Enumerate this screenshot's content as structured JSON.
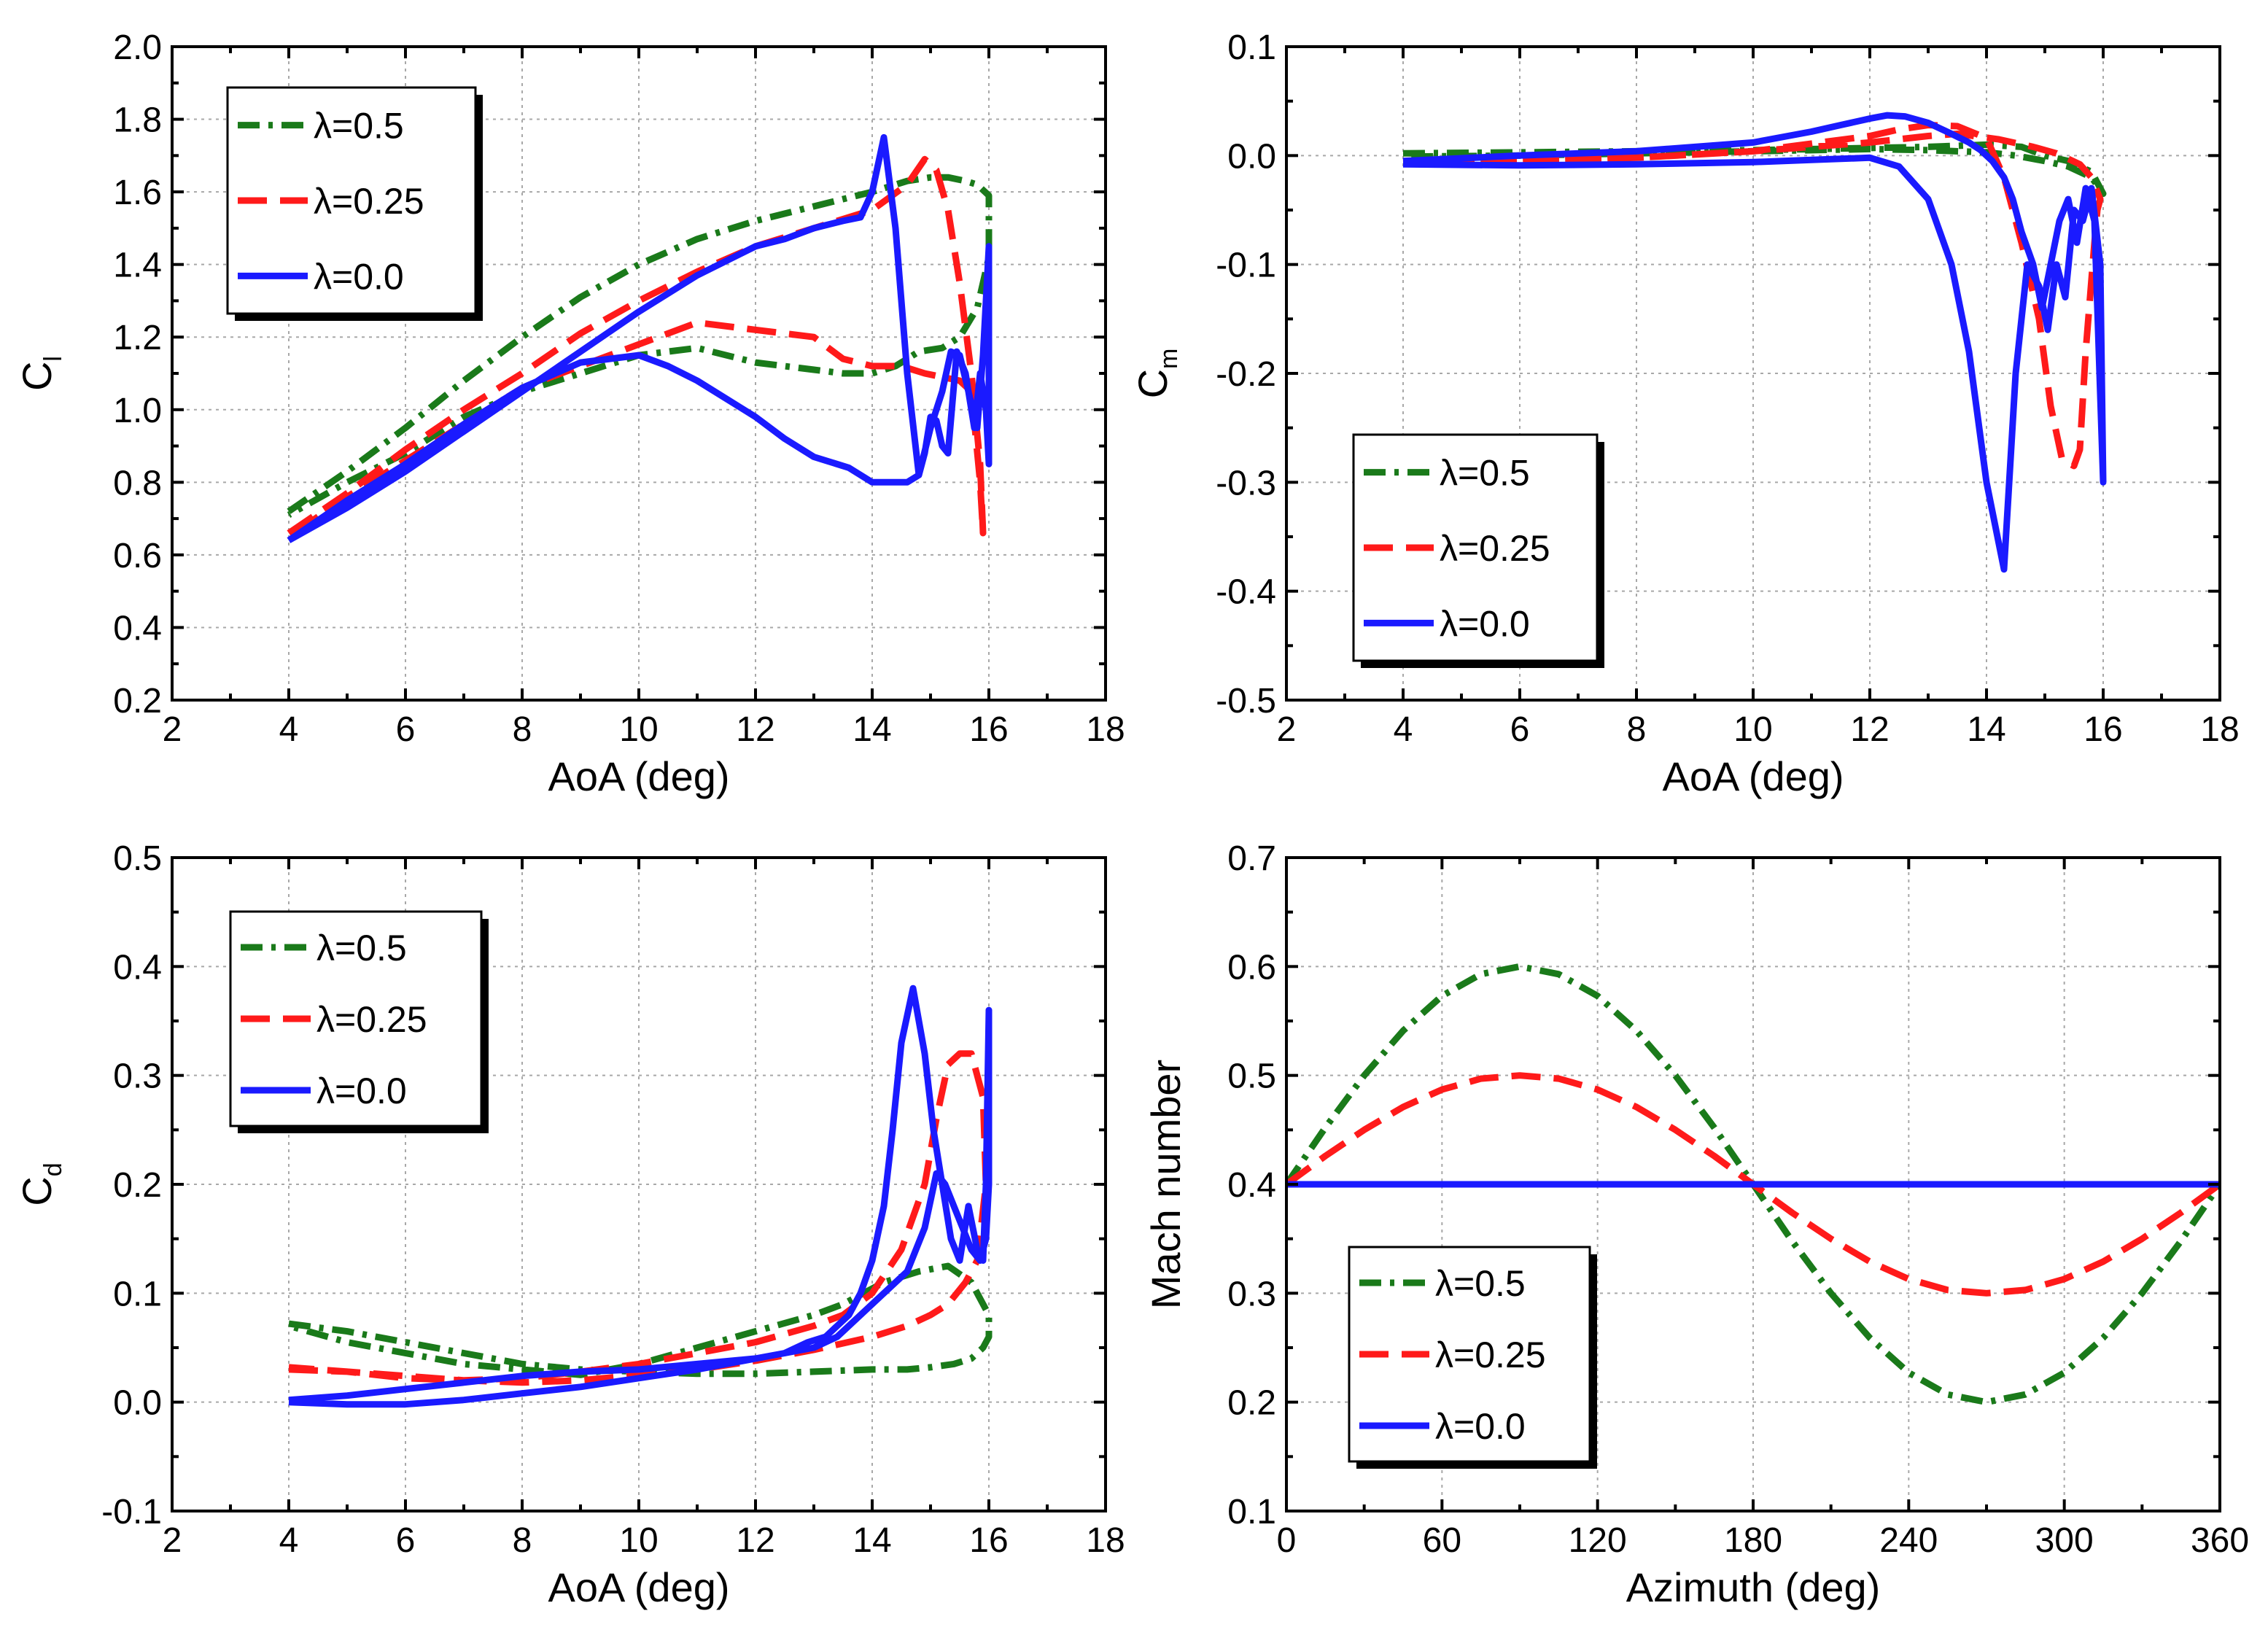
{
  "colors": {
    "green": "#1a7a1a",
    "red": "#ff1a1a",
    "blue": "#1a1aff"
  },
  "legend_labels": [
    "λ=0.5",
    "λ=0.25",
    "λ=0.0"
  ],
  "chart_data": [
    {
      "id": "cl",
      "type": "line",
      "xlabel": "AoA (deg)",
      "ylabel": "C",
      "ylabel_sub": "l",
      "xlim": [
        2,
        18
      ],
      "ylim": [
        0.2,
        2.0
      ],
      "xticks": [
        2,
        4,
        6,
        8,
        10,
        12,
        14,
        16,
        18
      ],
      "xtick_labels": [
        "2",
        "4",
        "6",
        "8",
        "10",
        "12",
        "14",
        "16",
        "18"
      ],
      "yticks": [
        0.2,
        0.4,
        0.6,
        0.8,
        1.0,
        1.2,
        1.4,
        1.6,
        1.8,
        2.0
      ],
      "ytick_labels": [
        "0.2",
        "0.4",
        "0.6",
        "0.8",
        "1.0",
        "1.2",
        "1.4",
        "1.6",
        "1.8",
        "2.0"
      ],
      "legend_position": "top-left",
      "series": [
        {
          "name": "λ=0.5",
          "color": "green",
          "style": "dashdot",
          "x": [
            4,
            5,
            6,
            7,
            8,
            9,
            10,
            11,
            12,
            13,
            14,
            14.6,
            15,
            15.3,
            15.6,
            15.8,
            16,
            16,
            15.8,
            15.5,
            15.2,
            14.8,
            14.4,
            14,
            13.5,
            13,
            12,
            11,
            10,
            9,
            8,
            7,
            6,
            5,
            4
          ],
          "y": [
            0.72,
            0.83,
            0.95,
            1.08,
            1.2,
            1.31,
            1.4,
            1.47,
            1.52,
            1.56,
            1.6,
            1.63,
            1.64,
            1.64,
            1.63,
            1.62,
            1.59,
            1.42,
            1.28,
            1.2,
            1.17,
            1.16,
            1.12,
            1.1,
            1.1,
            1.11,
            1.13,
            1.17,
            1.15,
            1.1,
            1.05,
            0.98,
            0.88,
            0.8,
            0.71
          ]
        },
        {
          "name": "λ=0.25",
          "color": "red",
          "style": "dashed",
          "x": [
            4,
            5,
            6,
            7,
            8,
            9,
            10,
            11,
            12,
            13,
            14,
            14.6,
            14.9,
            15.1,
            15.3,
            15.5,
            15.7,
            15.85,
            15.9,
            15.85,
            15.7,
            15.5,
            15.2,
            14.9,
            14.5,
            14,
            13.5,
            13,
            12,
            11,
            10,
            9,
            8,
            7,
            6,
            5,
            4
          ],
          "y": [
            0.66,
            0.77,
            0.89,
            1.0,
            1.1,
            1.21,
            1.3,
            1.38,
            1.45,
            1.5,
            1.55,
            1.62,
            1.69,
            1.66,
            1.55,
            1.35,
            1.1,
            0.85,
            0.66,
            0.8,
            1.05,
            1.08,
            1.09,
            1.1,
            1.12,
            1.12,
            1.14,
            1.2,
            1.22,
            1.24,
            1.18,
            1.12,
            1.06,
            0.96,
            0.86,
            0.76,
            0.65
          ]
        },
        {
          "name": "λ=0.0",
          "color": "blue",
          "style": "solid",
          "x": [
            4,
            5,
            6,
            7,
            8,
            9,
            10,
            11,
            12,
            12.5,
            13,
            13.5,
            13.8,
            14,
            14.2,
            14.4,
            14.6,
            14.8,
            15.0,
            15.2,
            15.35,
            15.5,
            15.65,
            15.8,
            15.9,
            15.95,
            16,
            16,
            15.95,
            15.85,
            15.75,
            15.6,
            15.45,
            15.3,
            15.2,
            15.1,
            15.0,
            14.9,
            14.8,
            14.6,
            14.4,
            14.0,
            13.6,
            13.0,
            12.5,
            12,
            11.5,
            11,
            10.5,
            10,
            9,
            8,
            7,
            6,
            5,
            4
          ],
          "y": [
            0.64,
            0.73,
            0.83,
            0.94,
            1.05,
            1.16,
            1.27,
            1.37,
            1.45,
            1.47,
            1.5,
            1.52,
            1.53,
            1.6,
            1.75,
            1.5,
            1.1,
            0.82,
            0.95,
            1.05,
            1.16,
            1.15,
            1.05,
            0.95,
            1.15,
            1.3,
            1.45,
            0.85,
            1.0,
            1.1,
            0.95,
            1.1,
            1.16,
            0.88,
            0.9,
            0.97,
            0.98,
            0.88,
            0.82,
            0.8,
            0.8,
            0.8,
            0.84,
            0.87,
            0.92,
            0.98,
            1.03,
            1.08,
            1.12,
            1.15,
            1.13,
            1.06,
            0.96,
            0.85,
            0.75,
            0.64
          ]
        }
      ]
    },
    {
      "id": "cm",
      "type": "line",
      "xlabel": "AoA (deg)",
      "ylabel": "C",
      "ylabel_sub": "m",
      "xlim": [
        2,
        18
      ],
      "ylim": [
        -0.5,
        0.1
      ],
      "xticks": [
        2,
        4,
        6,
        8,
        10,
        12,
        14,
        16,
        18
      ],
      "xtick_labels": [
        "2",
        "4",
        "6",
        "8",
        "10",
        "12",
        "14",
        "16",
        "18"
      ],
      "yticks": [
        -0.5,
        -0.4,
        -0.3,
        -0.2,
        -0.1,
        0.0,
        0.1
      ],
      "ytick_labels": [
        "-0.5",
        "-0.4",
        "-0.3",
        "-0.2",
        "-0.1",
        "0.0",
        "0.1"
      ],
      "legend_position": "bottom-left",
      "series": [
        {
          "name": "λ=0.5",
          "color": "green",
          "style": "dashdot",
          "x": [
            4,
            6,
            8,
            10,
            12,
            13,
            14,
            14.6,
            15,
            15.4,
            15.8,
            16,
            15.8,
            15.4,
            15,
            14.5,
            14,
            13,
            12,
            10,
            8,
            6,
            4
          ],
          "y": [
            0.002,
            0.003,
            0.004,
            0.005,
            0.007,
            0.008,
            0.01,
            0.008,
            0.0,
            -0.005,
            -0.015,
            -0.035,
            -0.02,
            -0.01,
            -0.005,
            0.0,
            0.003,
            0.005,
            0.006,
            0.004,
            0.002,
            0.0,
            -0.001
          ]
        },
        {
          "name": "λ=0.25",
          "color": "red",
          "style": "dashed",
          "x": [
            4,
            6,
            8,
            10,
            12,
            12.5,
            13,
            13.5,
            14,
            14.3,
            14.6,
            14.9,
            15.1,
            15.3,
            15.5,
            15.6,
            15.7,
            15.85,
            15.9,
            15.95,
            15.8,
            15.6,
            15.2,
            14.8,
            14.2,
            13.5,
            13,
            12,
            10,
            8,
            6,
            4
          ],
          "y": [
            -0.006,
            -0.004,
            -0.002,
            0.004,
            0.018,
            0.024,
            0.028,
            0.027,
            0.016,
            -0.02,
            -0.08,
            -0.15,
            -0.23,
            -0.28,
            -0.285,
            -0.27,
            -0.18,
            -0.08,
            -0.05,
            -0.04,
            -0.02,
            -0.008,
            0.002,
            0.008,
            0.015,
            0.02,
            0.018,
            0.012,
            0.004,
            -0.002,
            -0.005,
            -0.007
          ]
        },
        {
          "name": "λ=0.0",
          "color": "blue",
          "style": "solid",
          "x": [
            4,
            6,
            8,
            10,
            11,
            11.5,
            12,
            12.3,
            12.6,
            13,
            13.4,
            13.7,
            13.9,
            14.1,
            14.3,
            14.45,
            14.6,
            14.8,
            14.95,
            15.1,
            15.25,
            15.4,
            15.55,
            15.7,
            15.85,
            16,
            15.95,
            15.8,
            15.65,
            15.5,
            15.35,
            15.2,
            15.05,
            14.9,
            14.7,
            14.5,
            14.3,
            14.0,
            13.7,
            13.4,
            13,
            12.5,
            12,
            11,
            10,
            8,
            6,
            4
          ],
          "y": [
            -0.005,
            0.0,
            0.004,
            0.012,
            0.022,
            0.028,
            0.034,
            0.037,
            0.036,
            0.03,
            0.02,
            0.012,
            0.005,
            -0.005,
            -0.02,
            -0.04,
            -0.07,
            -0.1,
            -0.14,
            -0.1,
            -0.06,
            -0.04,
            -0.08,
            -0.03,
            -0.06,
            -0.3,
            -0.1,
            -0.03,
            -0.06,
            -0.05,
            -0.13,
            -0.1,
            -0.16,
            -0.12,
            -0.1,
            -0.2,
            -0.38,
            -0.3,
            -0.18,
            -0.1,
            -0.04,
            -0.01,
            -0.002,
            -0.004,
            -0.006,
            -0.008,
            -0.009,
            -0.008
          ]
        }
      ]
    },
    {
      "id": "cd",
      "type": "line",
      "xlabel": "AoA (deg)",
      "ylabel": "C",
      "ylabel_sub": "d",
      "xlim": [
        2,
        18
      ],
      "ylim": [
        -0.1,
        0.5
      ],
      "xticks": [
        2,
        4,
        6,
        8,
        10,
        12,
        14,
        16,
        18
      ],
      "xtick_labels": [
        "2",
        "4",
        "6",
        "8",
        "10",
        "12",
        "14",
        "16",
        "18"
      ],
      "yticks": [
        -0.1,
        0.0,
        0.1,
        0.2,
        0.3,
        0.4,
        0.5
      ],
      "ytick_labels": [
        "-0.1",
        "0.0",
        "0.1",
        "0.2",
        "0.3",
        "0.4",
        "0.5"
      ],
      "legend_position": "top-left",
      "series": [
        {
          "name": "λ=0.5",
          "color": "green",
          "style": "dashdot",
          "x": [
            4,
            5,
            6,
            7,
            8,
            9,
            10,
            11,
            12,
            13,
            14,
            14.6,
            15,
            15.4,
            15.7,
            15.9,
            16,
            16,
            15.7,
            15.3,
            14.8,
            14.2,
            13.5,
            13,
            12,
            11,
            10,
            9,
            8,
            7,
            6,
            5,
            4
          ],
          "y": [
            0.072,
            0.065,
            0.055,
            0.045,
            0.035,
            0.03,
            0.028,
            0.026,
            0.026,
            0.028,
            0.03,
            0.03,
            0.032,
            0.035,
            0.04,
            0.05,
            0.06,
            0.08,
            0.11,
            0.125,
            0.12,
            0.11,
            0.09,
            0.08,
            0.065,
            0.05,
            0.035,
            0.025,
            0.03,
            0.035,
            0.045,
            0.055,
            0.07
          ]
        },
        {
          "name": "λ=0.25",
          "color": "red",
          "style": "dashed",
          "x": [
            4,
            5,
            6,
            7,
            8,
            9,
            10,
            11,
            12,
            13,
            14,
            14.6,
            15,
            15.3,
            15.6,
            15.8,
            15.95,
            15.9,
            15.7,
            15.5,
            15.3,
            15.1,
            14.9,
            14.5,
            14,
            13.5,
            13,
            12,
            11,
            10,
            9,
            8,
            7,
            6,
            5,
            4
          ],
          "y": [
            0.03,
            0.028,
            0.024,
            0.02,
            0.018,
            0.02,
            0.025,
            0.03,
            0.038,
            0.048,
            0.06,
            0.07,
            0.08,
            0.09,
            0.11,
            0.13,
            0.2,
            0.28,
            0.32,
            0.32,
            0.31,
            0.26,
            0.2,
            0.14,
            0.1,
            0.08,
            0.07,
            0.055,
            0.045,
            0.035,
            0.028,
            0.022,
            0.02,
            0.022,
            0.028,
            0.032
          ]
        },
        {
          "name": "λ=0.0",
          "color": "blue",
          "style": "solid",
          "x": [
            4,
            5,
            6,
            7,
            8,
            9,
            10,
            11,
            12,
            12.5,
            12.9,
            13.2,
            13.4,
            13.6,
            13.8,
            14.0,
            14.2,
            14.35,
            14.5,
            14.7,
            14.9,
            15.05,
            15.2,
            15.35,
            15.5,
            15.65,
            15.8,
            15.9,
            15.95,
            16,
            16,
            15.95,
            15.85,
            15.7,
            15.55,
            15.4,
            15.25,
            15.1,
            14.9,
            14.6,
            14.2,
            13.8,
            13.4,
            13,
            12.5,
            12,
            11,
            10,
            9,
            8,
            7,
            6,
            5,
            4
          ],
          "y": [
            0.0,
            -0.002,
            -0.002,
            0.002,
            0.008,
            0.014,
            0.022,
            0.03,
            0.04,
            0.045,
            0.055,
            0.06,
            0.07,
            0.08,
            0.1,
            0.13,
            0.18,
            0.25,
            0.33,
            0.38,
            0.32,
            0.25,
            0.2,
            0.15,
            0.13,
            0.18,
            0.14,
            0.13,
            0.2,
            0.36,
            0.2,
            0.15,
            0.13,
            0.14,
            0.16,
            0.18,
            0.2,
            0.21,
            0.16,
            0.12,
            0.1,
            0.08,
            0.06,
            0.05,
            0.045,
            0.04,
            0.035,
            0.03,
            0.028,
            0.024,
            0.018,
            0.012,
            0.006,
            0.002
          ]
        }
      ]
    },
    {
      "id": "mach",
      "type": "line",
      "xlabel": "Azimuth (deg)",
      "ylabel": "Mach number",
      "ylabel_sub": "",
      "xlim": [
        0,
        360
      ],
      "ylim": [
        0.1,
        0.7
      ],
      "xticks": [
        0,
        60,
        120,
        180,
        240,
        300,
        360
      ],
      "xtick_labels": [
        "0",
        "60",
        "120",
        "180",
        "240",
        "300",
        "360"
      ],
      "yticks": [
        0.1,
        0.2,
        0.3,
        0.4,
        0.5,
        0.6,
        0.7
      ],
      "ytick_labels": [
        "0.1",
        "0.2",
        "0.3",
        "0.4",
        "0.5",
        "0.6",
        "0.7"
      ],
      "legend_position": "bottom-left",
      "series": [
        {
          "name": "λ=0.5",
          "color": "green",
          "style": "dashdot",
          "x": [
            0,
            15,
            30,
            45,
            60,
            75,
            90,
            105,
            120,
            135,
            150,
            165,
            180,
            195,
            210,
            225,
            240,
            255,
            270,
            285,
            300,
            315,
            330,
            345,
            360
          ],
          "y": [
            0.4,
            0.452,
            0.5,
            0.541,
            0.573,
            0.593,
            0.6,
            0.593,
            0.573,
            0.541,
            0.5,
            0.452,
            0.4,
            0.348,
            0.3,
            0.259,
            0.227,
            0.207,
            0.2,
            0.207,
            0.227,
            0.259,
            0.3,
            0.348,
            0.4
          ]
        },
        {
          "name": "λ=0.25",
          "color": "red",
          "style": "dashed",
          "x": [
            0,
            15,
            30,
            45,
            60,
            75,
            90,
            105,
            120,
            135,
            150,
            165,
            180,
            195,
            210,
            225,
            240,
            255,
            270,
            285,
            300,
            315,
            330,
            345,
            360
          ],
          "y": [
            0.4,
            0.426,
            0.45,
            0.471,
            0.487,
            0.497,
            0.5,
            0.497,
            0.487,
            0.471,
            0.45,
            0.426,
            0.4,
            0.374,
            0.35,
            0.329,
            0.313,
            0.303,
            0.3,
            0.303,
            0.313,
            0.329,
            0.35,
            0.374,
            0.4
          ]
        },
        {
          "name": "λ=0.0",
          "color": "blue",
          "style": "solid",
          "x": [
            0,
            360
          ],
          "y": [
            0.4,
            0.4
          ]
        }
      ]
    }
  ]
}
